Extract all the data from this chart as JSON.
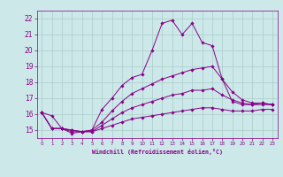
{
  "xlabel": "Windchill (Refroidissement éolien,°C)",
  "xlim": [
    -0.5,
    23.5
  ],
  "ylim": [
    14.5,
    22.5
  ],
  "xticks": [
    0,
    1,
    2,
    3,
    4,
    5,
    6,
    7,
    8,
    9,
    10,
    11,
    12,
    13,
    14,
    15,
    16,
    17,
    18,
    19,
    20,
    21,
    22,
    23
  ],
  "yticks": [
    15,
    16,
    17,
    18,
    19,
    20,
    21,
    22
  ],
  "bg_color": "#cce8e8",
  "line_color": "#880088",
  "grid_color": "#aacccc",
  "lines": [
    {
      "x": [
        0,
        1,
        2,
        3,
        4,
        5,
        6,
        7,
        8,
        9,
        10,
        11,
        12,
        13,
        14,
        15,
        16,
        17,
        18,
        19,
        20,
        21,
        22,
        23
      ],
      "y": [
        16.1,
        15.9,
        15.1,
        14.8,
        14.9,
        15.0,
        16.3,
        17.0,
        17.8,
        18.3,
        18.5,
        20.0,
        21.7,
        21.9,
        21.0,
        21.7,
        20.5,
        20.3,
        18.2,
        16.8,
        16.6,
        16.6,
        16.7,
        16.6
      ]
    },
    {
      "x": [
        0,
        1,
        2,
        3,
        4,
        5,
        6,
        7,
        8,
        9,
        10,
        11,
        12,
        13,
        14,
        15,
        16,
        17,
        18,
        19,
        20,
        21,
        22,
        23
      ],
      "y": [
        16.1,
        15.1,
        15.1,
        15.0,
        14.9,
        15.0,
        15.5,
        16.2,
        16.8,
        17.3,
        17.6,
        17.9,
        18.2,
        18.4,
        18.6,
        18.8,
        18.9,
        19.0,
        18.2,
        17.4,
        16.9,
        16.7,
        16.7,
        16.6
      ]
    },
    {
      "x": [
        0,
        1,
        2,
        3,
        4,
        5,
        6,
        7,
        8,
        9,
        10,
        11,
        12,
        13,
        14,
        15,
        16,
        17,
        18,
        19,
        20,
        21,
        22,
        23
      ],
      "y": [
        16.1,
        15.1,
        15.1,
        15.0,
        14.9,
        14.9,
        15.3,
        15.7,
        16.1,
        16.4,
        16.6,
        16.8,
        17.0,
        17.2,
        17.3,
        17.5,
        17.5,
        17.6,
        17.2,
        16.9,
        16.7,
        16.6,
        16.6,
        16.6
      ]
    },
    {
      "x": [
        0,
        1,
        2,
        3,
        4,
        5,
        6,
        7,
        8,
        9,
        10,
        11,
        12,
        13,
        14,
        15,
        16,
        17,
        18,
        19,
        20,
        21,
        22,
        23
      ],
      "y": [
        16.1,
        15.1,
        15.1,
        14.9,
        14.9,
        14.9,
        15.1,
        15.3,
        15.5,
        15.7,
        15.8,
        15.9,
        16.0,
        16.1,
        16.2,
        16.3,
        16.4,
        16.4,
        16.3,
        16.2,
        16.2,
        16.2,
        16.3,
        16.3
      ]
    }
  ]
}
